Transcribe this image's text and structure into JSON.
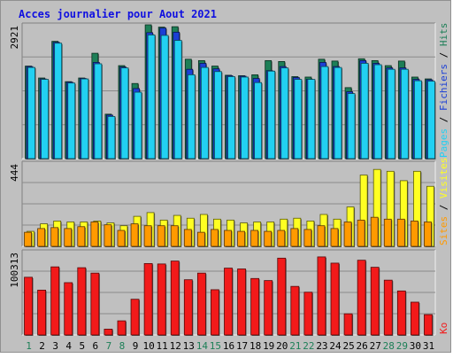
{
  "chart_data": [
    {
      "type": "bar",
      "title": "Acces journalier pour Aout 2021",
      "categories": [
        "1",
        "2",
        "3",
        "4",
        "5",
        "6",
        "7",
        "8",
        "9",
        "10",
        "11",
        "12",
        "13",
        "14",
        "15",
        "16",
        "17",
        "18",
        "19",
        "20",
        "21",
        "22",
        "23",
        "24",
        "25",
        "26",
        "27",
        "28",
        "29",
        "30",
        "31"
      ],
      "weekend_days": [
        1,
        7,
        8,
        14,
        15,
        21,
        22,
        28,
        29
      ],
      "ymax_label": "2921",
      "ylim": [
        0,
        2921
      ],
      "legend": [
        "Pages",
        "Fichiers",
        "Hits"
      ],
      "colors": {
        "Hits": "#1d7f57",
        "Fichiers": "#1b3fd6",
        "Pages": "#22d0f2"
      },
      "series": [
        {
          "name": "Hits",
          "values": [
            2020,
            1760,
            2560,
            1680,
            1760,
            2300,
            970,
            2030,
            1640,
            2921,
            2870,
            2880,
            2170,
            2140,
            2020,
            1820,
            1810,
            1830,
            2140,
            2120,
            1790,
            1780,
            2170,
            2130,
            1550,
            2180,
            2140,
            2030,
            2130,
            1780,
            1740
          ]
        },
        {
          "name": "Fichiers",
          "values": [
            2010,
            1740,
            2540,
            1670,
            1750,
            2100,
            950,
            2000,
            1530,
            2750,
            2850,
            2760,
            1950,
            2080,
            1960,
            1810,
            1800,
            1750,
            1920,
            2010,
            1770,
            1730,
            2100,
            2010,
            1460,
            2140,
            2080,
            1980,
            1980,
            1730,
            1720
          ]
        },
        {
          "name": "Pages",
          "values": [
            1990,
            1730,
            2520,
            1650,
            1740,
            2070,
            920,
            1980,
            1450,
            2700,
            2690,
            2580,
            1830,
            1990,
            1900,
            1790,
            1780,
            1660,
            1910,
            1980,
            1730,
            1730,
            2010,
            1990,
            1420,
            2080,
            2050,
            1950,
            1950,
            1700,
            1690
          ]
        }
      ]
    },
    {
      "type": "bar",
      "ymax_label": "444",
      "ylim": [
        0,
        444
      ],
      "legend": [
        "Sites",
        "Visites"
      ],
      "colors": {
        "Visites": "#ffff22",
        "Sites": "#ff9a00"
      },
      "series": [
        {
          "name": "Visites",
          "values": [
            80,
            120,
            135,
            130,
            130,
            135,
            125,
            110,
            160,
            180,
            140,
            165,
            150,
            170,
            145,
            140,
            125,
            130,
            130,
            145,
            150,
            135,
            170,
            145,
            210,
            380,
            410,
            400,
            350,
            400,
            320
          ]
        },
        {
          "name": "Sites",
          "values": [
            75,
            95,
            100,
            95,
            105,
            130,
            115,
            85,
            120,
            110,
            110,
            110,
            90,
            75,
            90,
            85,
            80,
            85,
            80,
            85,
            95,
            90,
            110,
            95,
            130,
            140,
            155,
            145,
            145,
            135,
            130
          ]
        }
      ]
    },
    {
      "type": "bar",
      "ymax_label": "100313",
      "ylim": [
        0,
        100313
      ],
      "legend": [
        "Ko"
      ],
      "colors": {
        "Ko": "#f21a1a"
      },
      "series": [
        {
          "name": "Ko",
          "values": [
            69500,
            54000,
            82000,
            63000,
            81000,
            74500,
            7000,
            17000,
            43000,
            86000,
            85500,
            89000,
            66500,
            74500,
            54500,
            80500,
            79500,
            68000,
            65500,
            92500,
            58500,
            51500,
            94000,
            86500,
            25500,
            90000,
            81500,
            66000,
            53000,
            39500,
            24500
          ]
        }
      ]
    }
  ]
}
